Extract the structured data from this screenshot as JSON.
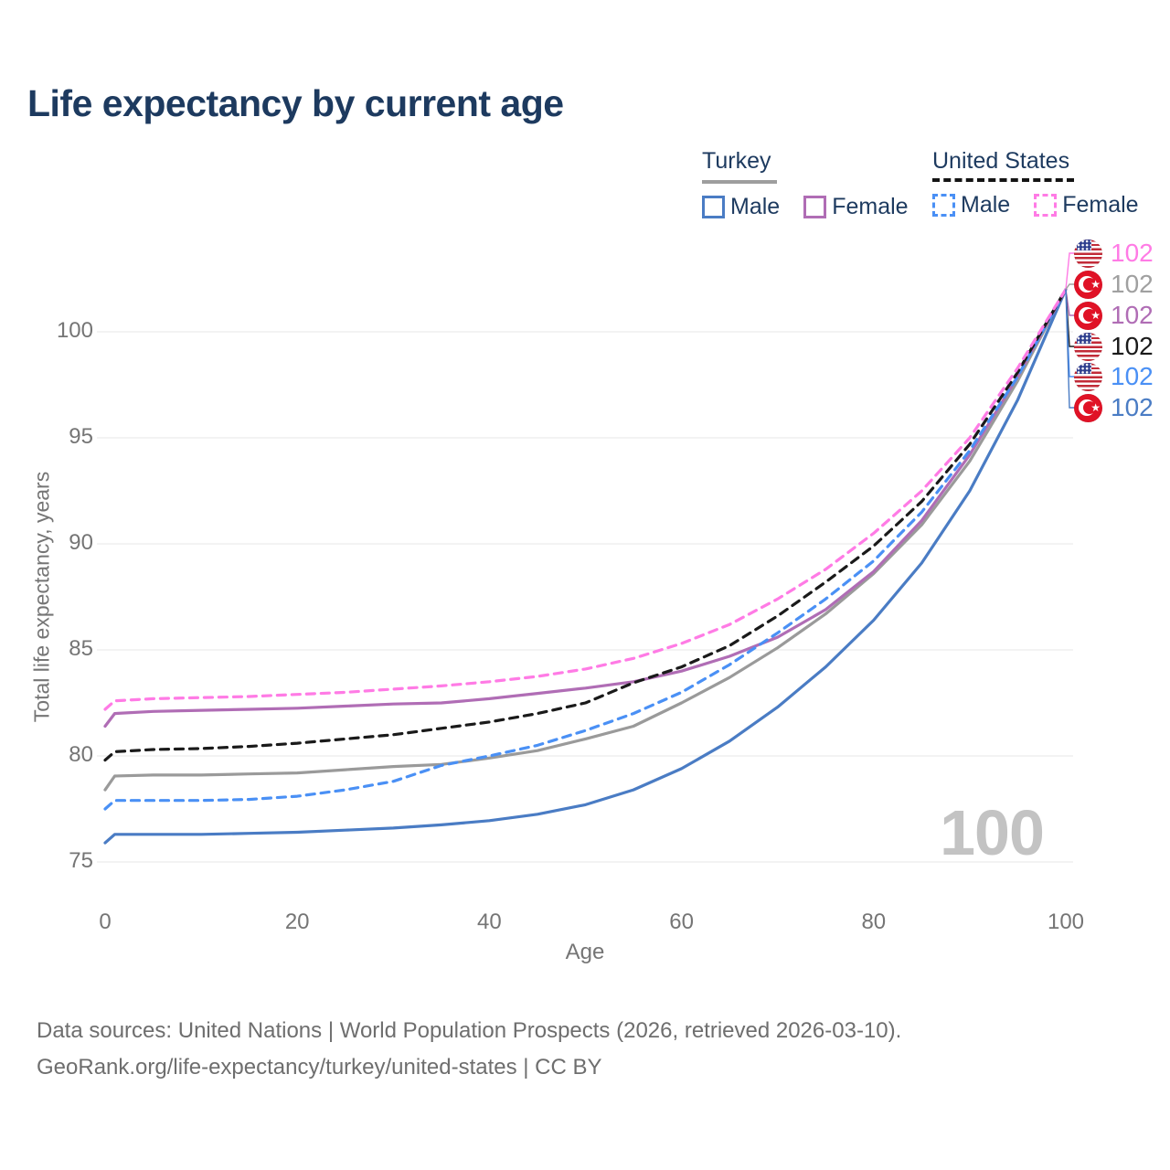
{
  "title": "Life expectancy by current age",
  "watermark": "100",
  "legend": {
    "groups": [
      {
        "country": "Turkey",
        "line_style": "solid",
        "header_swatch_color": "#9e9e9e",
        "items": [
          {
            "label": "Male",
            "color": "#4a7cc4",
            "dash": false
          },
          {
            "label": "Female",
            "color": "#b06db5",
            "dash": false
          }
        ]
      },
      {
        "country": "United States",
        "line_style": "dashed",
        "header_swatch_color": "#141414",
        "items": [
          {
            "label": "Male",
            "color": "#4a90f5",
            "dash": true
          },
          {
            "label": "Female",
            "color": "#ff7be5",
            "dash": true
          }
        ]
      }
    ]
  },
  "end_labels": [
    {
      "country": "United States",
      "sex": "Female",
      "flag": "us",
      "value": "102",
      "color": "#ff7be5"
    },
    {
      "country": "Turkey",
      "sex": "Both sexes",
      "flag": "tr",
      "value": "102",
      "color": "#a0a0a0"
    },
    {
      "country": "Turkey",
      "sex": "Female",
      "flag": "tr",
      "value": "102",
      "color": "#b06db5"
    },
    {
      "country": "United States",
      "sex": "Both sexes",
      "flag": "us",
      "value": "102",
      "color": "#1a1a1a"
    },
    {
      "country": "United States",
      "sex": "Male",
      "flag": "us",
      "value": "102",
      "color": "#4a90f5"
    },
    {
      "country": "Turkey",
      "sex": "Male",
      "flag": "tr",
      "value": "102",
      "color": "#4a7cc4"
    }
  ],
  "footer": {
    "line1": "Data sources: United Nations | World Population Prospects (2026, retrieved 2026-03-10).",
    "line2": "GeoRank.org/life-expectancy/turkey/united-states | CC BY"
  },
  "chart_data": {
    "type": "line",
    "title": "Life expectancy by current age",
    "xlabel": "Age",
    "ylabel": "Total life expectancy, years",
    "xlim": [
      0,
      100
    ],
    "ylim": [
      75,
      103.5
    ],
    "xticks": [
      0,
      20,
      40,
      60,
      80,
      100
    ],
    "yticks": [
      75,
      80,
      85,
      90,
      95,
      100
    ],
    "grid": true,
    "gridline_color": "#ececec",
    "legend_position": "top-right",
    "x": [
      0,
      1,
      5,
      10,
      15,
      20,
      25,
      30,
      35,
      40,
      45,
      50,
      55,
      60,
      65,
      70,
      75,
      80,
      85,
      90,
      95,
      100
    ],
    "series": [
      {
        "name": "Turkey",
        "country": "Turkey",
        "sex": "Both sexes",
        "color": "#9a9a9a",
        "dash": false,
        "values": [
          78.4,
          79.05,
          79.1,
          79.1,
          79.15,
          79.2,
          79.35,
          79.5,
          79.6,
          79.9,
          80.25,
          80.8,
          81.4,
          82.5,
          83.7,
          85.1,
          86.7,
          88.6,
          90.9,
          93.9,
          97.7,
          102
        ]
      },
      {
        "name": "Turkey Male",
        "country": "Turkey",
        "sex": "Male",
        "color": "#4a7cc4",
        "dash": false,
        "values": [
          75.9,
          76.3,
          76.3,
          76.3,
          76.35,
          76.4,
          76.5,
          76.6,
          76.75,
          76.95,
          77.25,
          77.7,
          78.4,
          79.4,
          80.7,
          82.3,
          84.2,
          86.4,
          89.1,
          92.5,
          96.8,
          102
        ]
      },
      {
        "name": "Turkey Female",
        "country": "Turkey",
        "sex": "Female",
        "color": "#b06db5",
        "dash": false,
        "values": [
          81.4,
          82.0,
          82.1,
          82.15,
          82.2,
          82.25,
          82.35,
          82.45,
          82.5,
          82.7,
          82.95,
          83.2,
          83.5,
          84.0,
          84.7,
          85.6,
          86.9,
          88.7,
          91.1,
          94.2,
          97.9,
          102
        ]
      },
      {
        "name": "United States Male",
        "country": "United States",
        "sex": "Male",
        "color": "#4a90f5",
        "dash": true,
        "values": [
          77.5,
          77.9,
          77.9,
          77.9,
          77.95,
          78.1,
          78.4,
          78.8,
          79.55,
          80.0,
          80.5,
          81.2,
          82.0,
          83.0,
          84.3,
          85.8,
          87.4,
          89.2,
          91.5,
          94.4,
          97.9,
          102
        ]
      },
      {
        "name": "United States",
        "country": "United States",
        "sex": "Both sexes",
        "color": "#1a1a1a",
        "dash": true,
        "values": [
          79.8,
          80.2,
          80.3,
          80.35,
          80.45,
          80.6,
          80.8,
          81.0,
          81.3,
          81.6,
          82.0,
          82.5,
          83.45,
          84.2,
          85.2,
          86.6,
          88.2,
          89.9,
          92.0,
          94.7,
          98.1,
          102
        ]
      },
      {
        "name": "United States Female",
        "country": "United States",
        "sex": "Female",
        "color": "#ff7be5",
        "dash": true,
        "values": [
          82.2,
          82.6,
          82.7,
          82.75,
          82.8,
          82.9,
          83.0,
          83.15,
          83.3,
          83.5,
          83.75,
          84.1,
          84.6,
          85.3,
          86.2,
          87.4,
          88.8,
          90.5,
          92.5,
          95.0,
          98.3,
          102
        ]
      }
    ],
    "end_value_all_series": 102
  }
}
